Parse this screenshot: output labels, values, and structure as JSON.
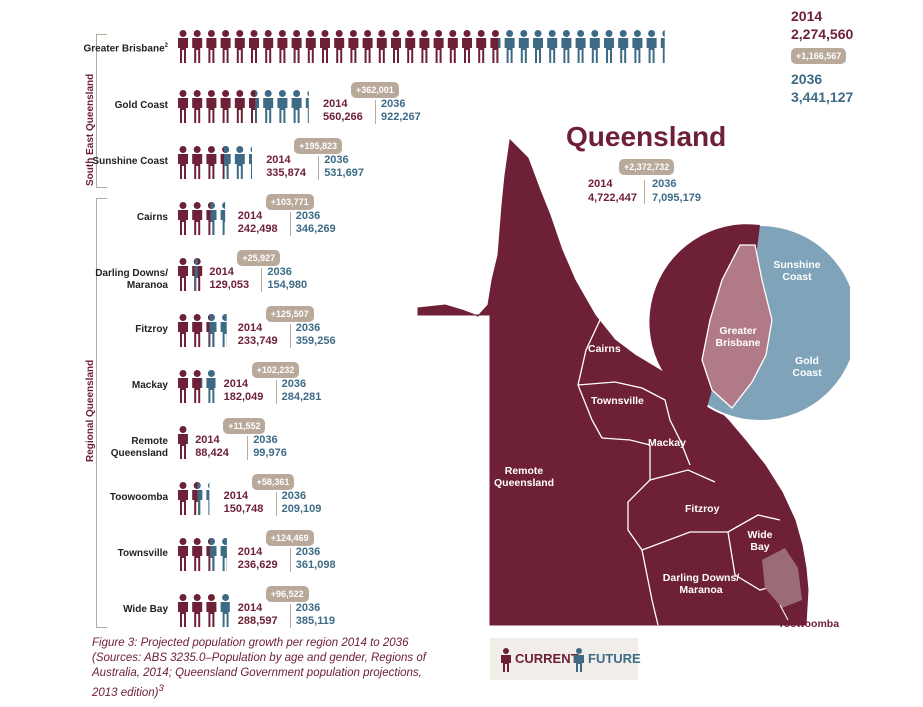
{
  "chart_data": {
    "type": "pictogram",
    "title": "Queensland",
    "legend": [
      "CURRENT",
      "FUTURE"
    ],
    "colors": {
      "current": "#6e2036",
      "future": "#3d6b86",
      "increase": "#b9a99a"
    },
    "groups": [
      "South East Queensland",
      "Regional Queensland"
    ],
    "regions": [
      {
        "label": "Greater Brisbane",
        "footnote": "2",
        "group": "South East Queensland",
        "y2014": 2274560,
        "y2036": 3441127,
        "change": 1166567,
        "y2014_label": "2,274,560",
        "y2036_label": "3,441,127",
        "change_label": "+1,166,567"
      },
      {
        "label": "Gold Coast",
        "group": "South East Queensland",
        "y2014": 560266,
        "y2036": 922267,
        "change": 362001,
        "y2014_label": "560,266",
        "y2036_label": "922,267",
        "change_label": "+362,001"
      },
      {
        "label": "Sunshine Coast",
        "group": "South East Queensland",
        "y2014": 335874,
        "y2036": 531697,
        "change": 195823,
        "y2014_label": "335,874",
        "y2036_label": "531,697",
        "change_label": "+195,823"
      },
      {
        "label": "Cairns",
        "group": "Regional Queensland",
        "y2014": 242498,
        "y2036": 346269,
        "change": 103771,
        "y2014_label": "242,498",
        "y2036_label": "346,269",
        "change_label": "+103,771"
      },
      {
        "label": "Darling Downs/ Maranoa",
        "group": "Regional Queensland",
        "y2014": 129053,
        "y2036": 154980,
        "change": 25927,
        "y2014_label": "129,053",
        "y2036_label": "154,980",
        "change_label": "+25,927"
      },
      {
        "label": "Fitzroy",
        "group": "Regional Queensland",
        "y2014": 233749,
        "y2036": 359256,
        "change": 125507,
        "y2014_label": "233,749",
        "y2036_label": "359,256",
        "change_label": "+125,507"
      },
      {
        "label": "Mackay",
        "group": "Regional Queensland",
        "y2014": 182049,
        "y2036": 284281,
        "change": 102232,
        "y2014_label": "182,049",
        "y2036_label": "284,281",
        "change_label": "+102,232"
      },
      {
        "label": "Remote Queensland",
        "group": "Regional Queensland",
        "y2014": 88424,
        "y2036": 99976,
        "change": 11552,
        "y2014_label": "88,424",
        "y2036_label": "99,976",
        "change_label": "+11,552"
      },
      {
        "label": "Toowoomba",
        "group": "Regional Queensland",
        "y2014": 150748,
        "y2036": 209109,
        "change": 58361,
        "y2014_label": "150,748",
        "y2036_label": "209,109",
        "change_label": "+58,361"
      },
      {
        "label": "Townsville",
        "group": "Regional Queensland",
        "y2014": 236629,
        "y2036": 361098,
        "change": 124469,
        "y2014_label": "236,629",
        "y2036_label": "361,098",
        "change_label": "+124,469"
      },
      {
        "label": "Wide Bay",
        "group": "Regional Queensland",
        "y2014": 288597,
        "y2036": 385119,
        "change": 96522,
        "y2014_label": "288,597",
        "y2036_label": "385,119",
        "change_label": "+96,522"
      }
    ],
    "total": {
      "label": "Queensland",
      "y2014": 4722447,
      "y2036": 7095179,
      "change": 2372732,
      "y2014_label": "4,722,447",
      "y2036_label": "7,095,179",
      "change_label": "+2,372,732"
    },
    "year_labels": {
      "current": "2014",
      "future": "2036"
    },
    "map_labels": [
      "Cairns",
      "Townsville",
      "Mackay",
      "Remote Queensland",
      "Fitzroy",
      "Wide Bay",
      "Darling Downs/ Maranoa",
      "Toowoomba"
    ],
    "inset_labels": [
      "Sunshine Coast",
      "Greater Brisbane",
      "Gold Coast"
    ]
  },
  "caption": {
    "text": "Figure 3: Projected population growth per region 2014 to 2036 (Sources: ABS 3235.0–Population by age and gender, Regions of Australia, 2014; Queensland Government population projections, 2013 edition)",
    "footnote": "3"
  }
}
